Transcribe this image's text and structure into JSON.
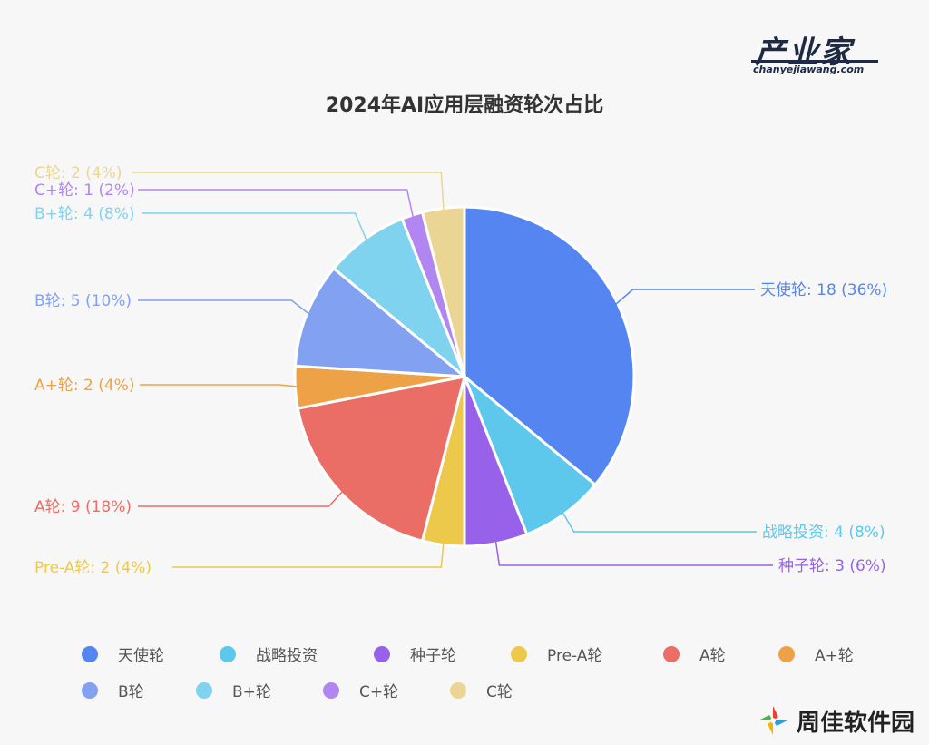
{
  "header": {
    "logo_main": "产业家",
    "logo_sub": "chanyejiawang.com"
  },
  "chart_data": {
    "type": "pie",
    "title": "2024年AI应用层融资轮次占比",
    "slices": [
      {
        "name": "天使轮",
        "value": 18,
        "percent": "36%",
        "color": "#5585f0"
      },
      {
        "name": "战略投资",
        "value": 4,
        "percent": "8%",
        "color": "#5ec8ec"
      },
      {
        "name": "种子轮",
        "value": 3,
        "percent": "6%",
        "color": "#9761ea"
      },
      {
        "name": "Pre-A轮",
        "value": 2,
        "percent": "4%",
        "color": "#ecc94b"
      },
      {
        "name": "A轮",
        "value": 9,
        "percent": "18%",
        "color": "#ea6d66"
      },
      {
        "name": "A+轮",
        "value": 2,
        "percent": "4%",
        "color": "#eea247"
      },
      {
        "name": "B轮",
        "value": 5,
        "percent": "10%",
        "color": "#82a1f0"
      },
      {
        "name": "B+轮",
        "value": 4,
        "percent": "8%",
        "color": "#7fd3ee"
      },
      {
        "name": "C+轮",
        "value": 1,
        "percent": "2%",
        "color": "#b286f0"
      },
      {
        "name": "C轮",
        "value": 2,
        "percent": "4%",
        "color": "#ebd594"
      }
    ],
    "labels": [
      "天使轮: 18 (36%)",
      "战略投资: 4 (8%)",
      "种子轮: 3 (6%)",
      "Pre-A轮: 2 (4%)",
      "A轮: 9 (18%)",
      "A+轮: 2 (4%)",
      "B轮: 5 (10%)",
      "B+轮: 4 (8%)",
      "C+轮: 1 (2%)",
      "C轮: 2 (4%)"
    ],
    "legend_placement": "bottom"
  },
  "watermark": {
    "text": "周佳软件园"
  }
}
